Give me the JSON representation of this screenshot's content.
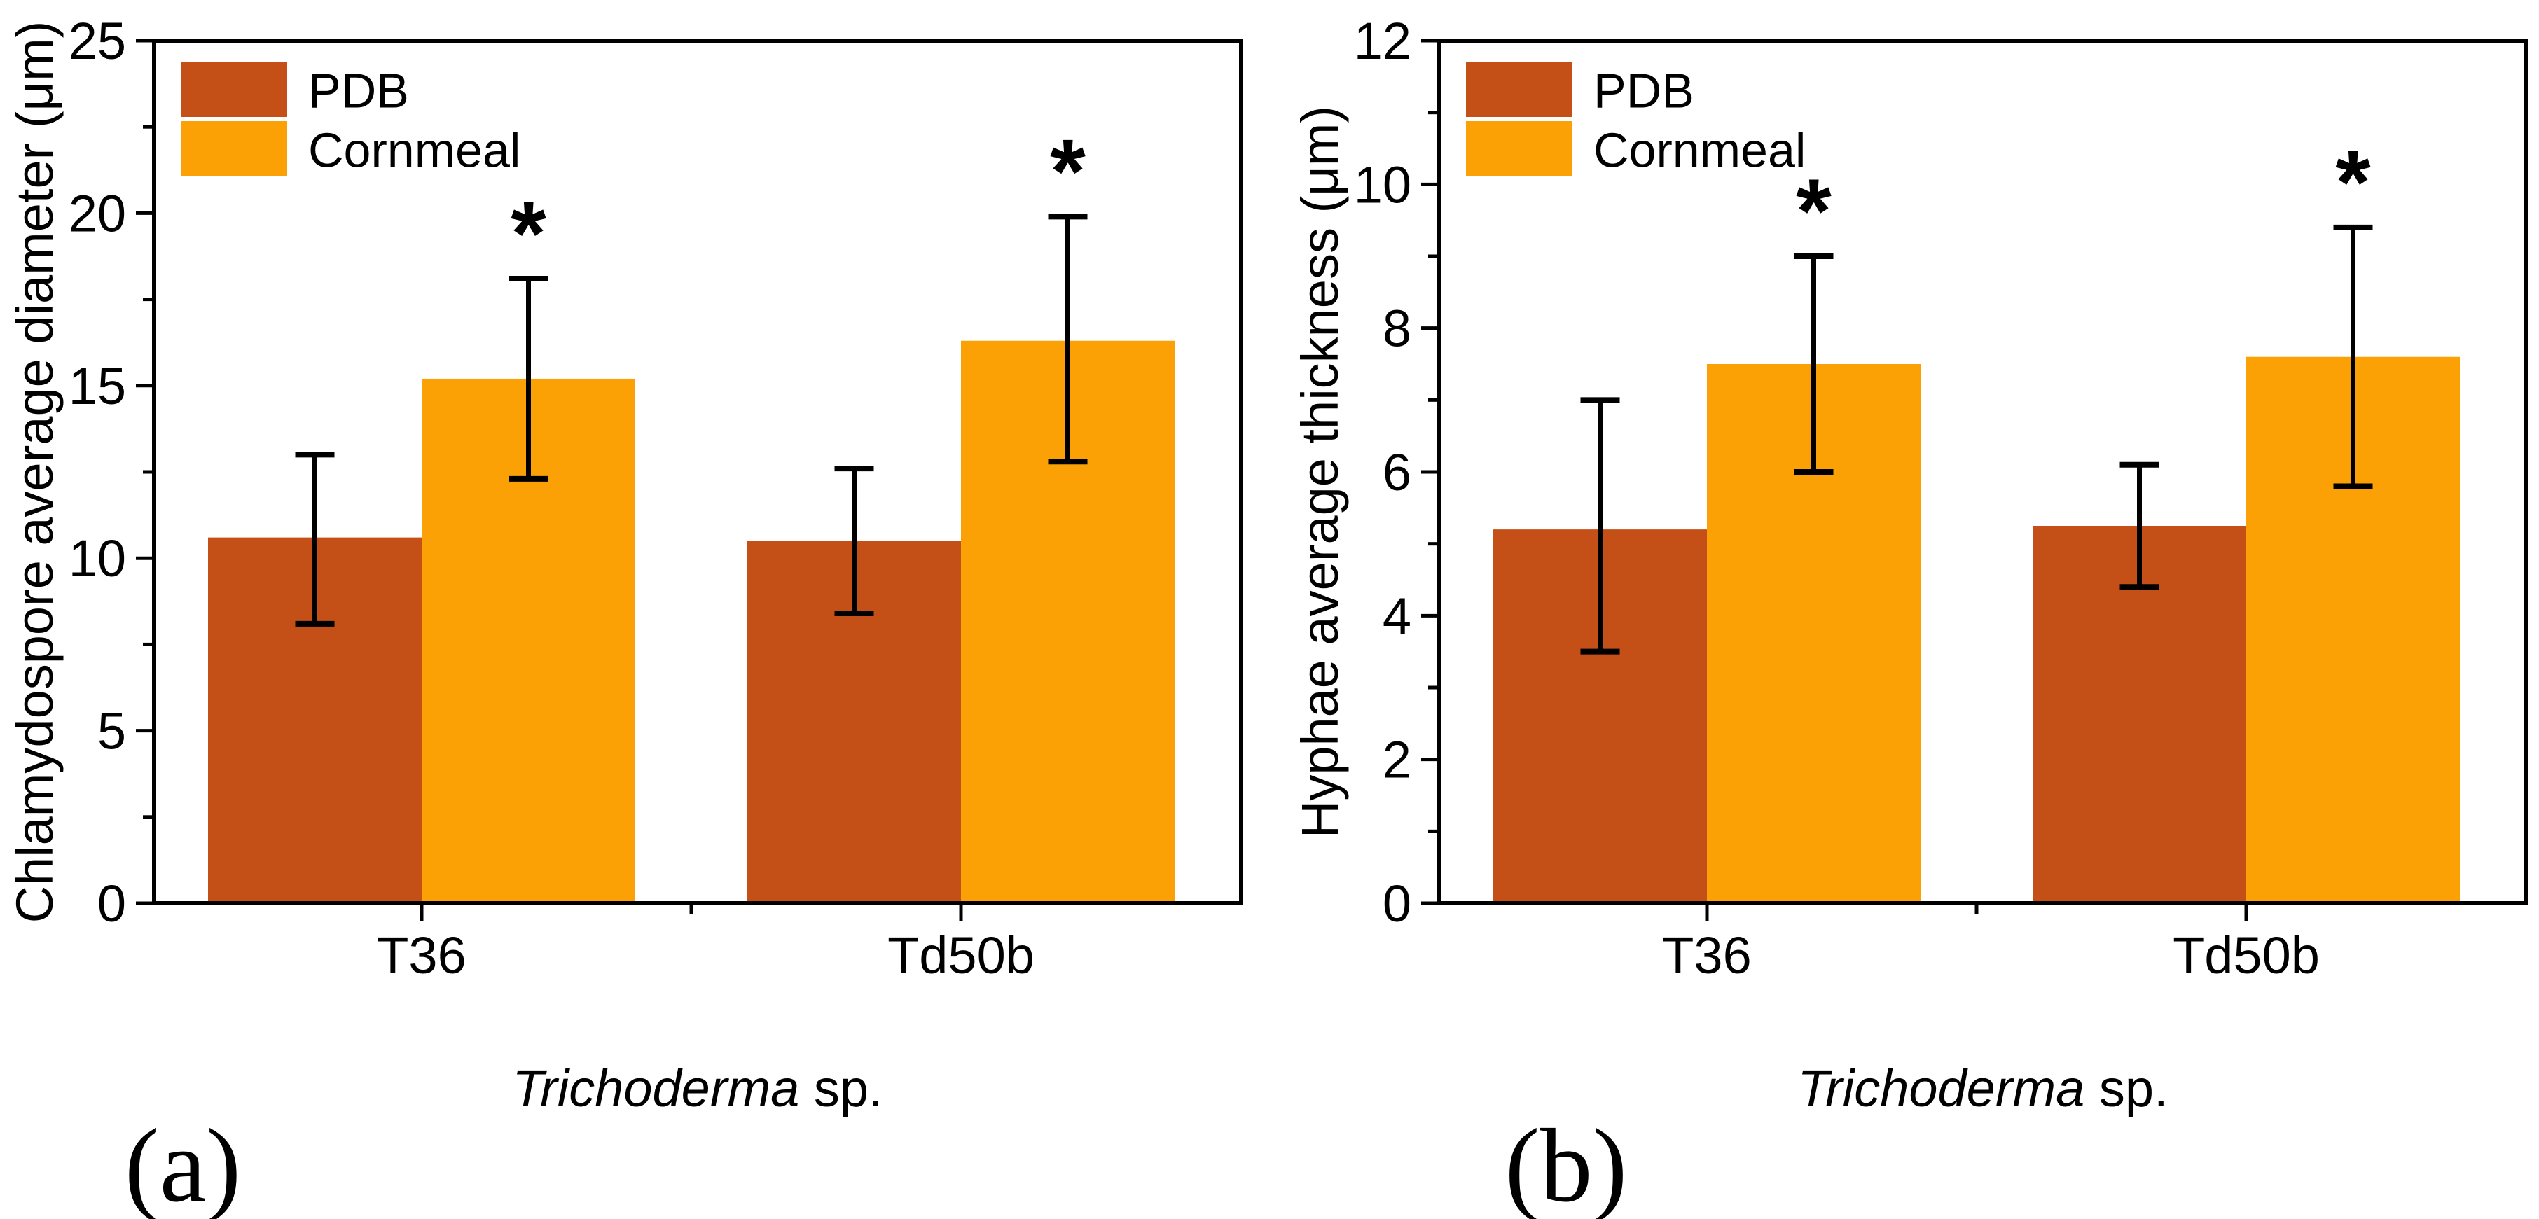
{
  "figure": {
    "background": "#ffffff",
    "significance_marker": "*"
  },
  "colors": {
    "pdb": "#C44F17",
    "cornmeal": "#FBA005",
    "axis": "#000000",
    "error_bar": "#000000"
  },
  "legend": {
    "items": [
      {
        "label": "PDB",
        "color_key": "pdb"
      },
      {
        "label": "Cornmeal",
        "color_key": "cornmeal"
      }
    ]
  },
  "chart_data": [
    {
      "type": "bar",
      "panel_key": "a",
      "panel_label": "(a)",
      "ylabel": "Chlamydospore average diameter (μm)",
      "xlabel_italic": "Trichoderma",
      "xlabel_regular": " sp.",
      "categories": [
        "T36",
        "Td50b"
      ],
      "series": [
        {
          "name": "PDB",
          "color_key": "pdb",
          "values": [
            10.6,
            10.5
          ],
          "err_low": [
            8.1,
            8.4
          ],
          "err_high": [
            13.0,
            12.6
          ],
          "significant": [
            false,
            false
          ]
        },
        {
          "name": "Cornmeal",
          "color_key": "cornmeal",
          "values": [
            15.2,
            16.3
          ],
          "err_low": [
            12.3,
            12.8
          ],
          "err_high": [
            18.1,
            19.9
          ],
          "significant": [
            true,
            true
          ]
        }
      ],
      "ylim": [
        0,
        25
      ],
      "ytick_step": 5,
      "yminor_step": 2.5,
      "ytick_labels": [
        "0",
        "5",
        "10",
        "15",
        "20",
        "25"
      ],
      "legend_position": "top-left",
      "grid": false
    },
    {
      "type": "bar",
      "panel_key": "b",
      "panel_label": "(b)",
      "ylabel": "Hyphae average thickness (μm)",
      "xlabel_italic": "Trichoderma",
      "xlabel_regular": " sp.",
      "categories": [
        "T36",
        "Td50b"
      ],
      "series": [
        {
          "name": "PDB",
          "color_key": "pdb",
          "values": [
            5.2,
            5.25
          ],
          "err_low": [
            3.5,
            4.4
          ],
          "err_high": [
            7.0,
            6.1
          ],
          "significant": [
            false,
            false
          ]
        },
        {
          "name": "Cornmeal",
          "color_key": "cornmeal",
          "values": [
            7.5,
            7.6
          ],
          "err_low": [
            6.0,
            5.8
          ],
          "err_high": [
            9.0,
            9.4
          ],
          "significant": [
            true,
            true
          ]
        }
      ],
      "ylim": [
        0,
        12
      ],
      "ytick_step": 2,
      "yminor_step": 1,
      "ytick_labels": [
        "0",
        "2",
        "4",
        "6",
        "8",
        "10",
        "12"
      ],
      "legend_position": "top-left",
      "grid": false
    }
  ]
}
